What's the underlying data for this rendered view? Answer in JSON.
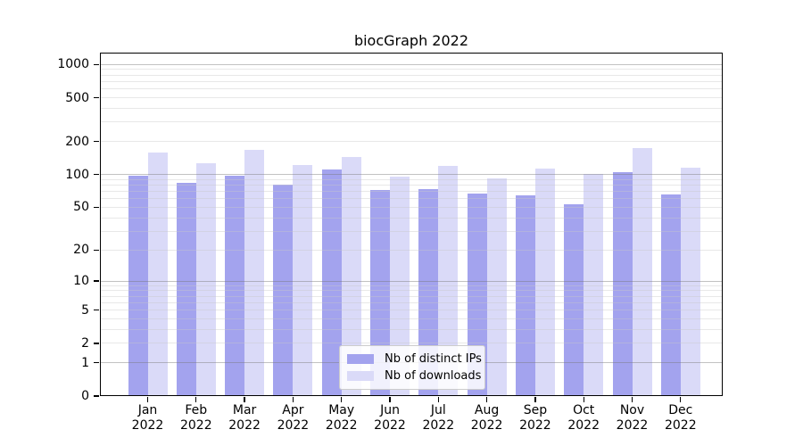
{
  "title": "biocGraph 2022",
  "legend": {
    "items": [
      {
        "label": "Nb of distinct IPs",
        "color": "#a3a3ee"
      },
      {
        "label": "Nb of downloads",
        "color": "#dadaf8"
      }
    ]
  },
  "chart_data": {
    "type": "bar",
    "title": "biocGraph 2022",
    "year": "2022",
    "categories": [
      "Jan",
      "Feb",
      "Mar",
      "Apr",
      "May",
      "Jun",
      "Jul",
      "Aug",
      "Sep",
      "Oct",
      "Nov",
      "Dec"
    ],
    "series": [
      {
        "name": "Nb of distinct IPs",
        "color": "#a3a3ee",
        "values": [
          97,
          84,
          97,
          81,
          111,
          72,
          74,
          67,
          65,
          53,
          105,
          66
        ]
      },
      {
        "name": "Nb of downloads",
        "color": "#dadaf8",
        "values": [
          160,
          127,
          169,
          122,
          146,
          95,
          120,
          93,
          113,
          101,
          176,
          115
        ]
      }
    ],
    "xlabel": "",
    "ylabel": "",
    "y_scale": "log10(1+y)",
    "y_ticks": [
      1000,
      500,
      200,
      100,
      50,
      20,
      10,
      5,
      2,
      1,
      0
    ],
    "y_grid_major": [
      1,
      10,
      100,
      1000
    ],
    "y_grid_minor": [
      2,
      3,
      4,
      5,
      6,
      7,
      8,
      9,
      20,
      30,
      40,
      50,
      60,
      70,
      80,
      90,
      200,
      300,
      400,
      500,
      600,
      700,
      800,
      900
    ],
    "ylim": [
      0,
      1278
    ],
    "grid": true,
    "legend_position": "inside lower center",
    "colors": {
      "grid_major": "#c2c2c2",
      "grid_minor": "#e7e7e7",
      "axis": "#000000",
      "background": "#ffffff"
    }
  }
}
